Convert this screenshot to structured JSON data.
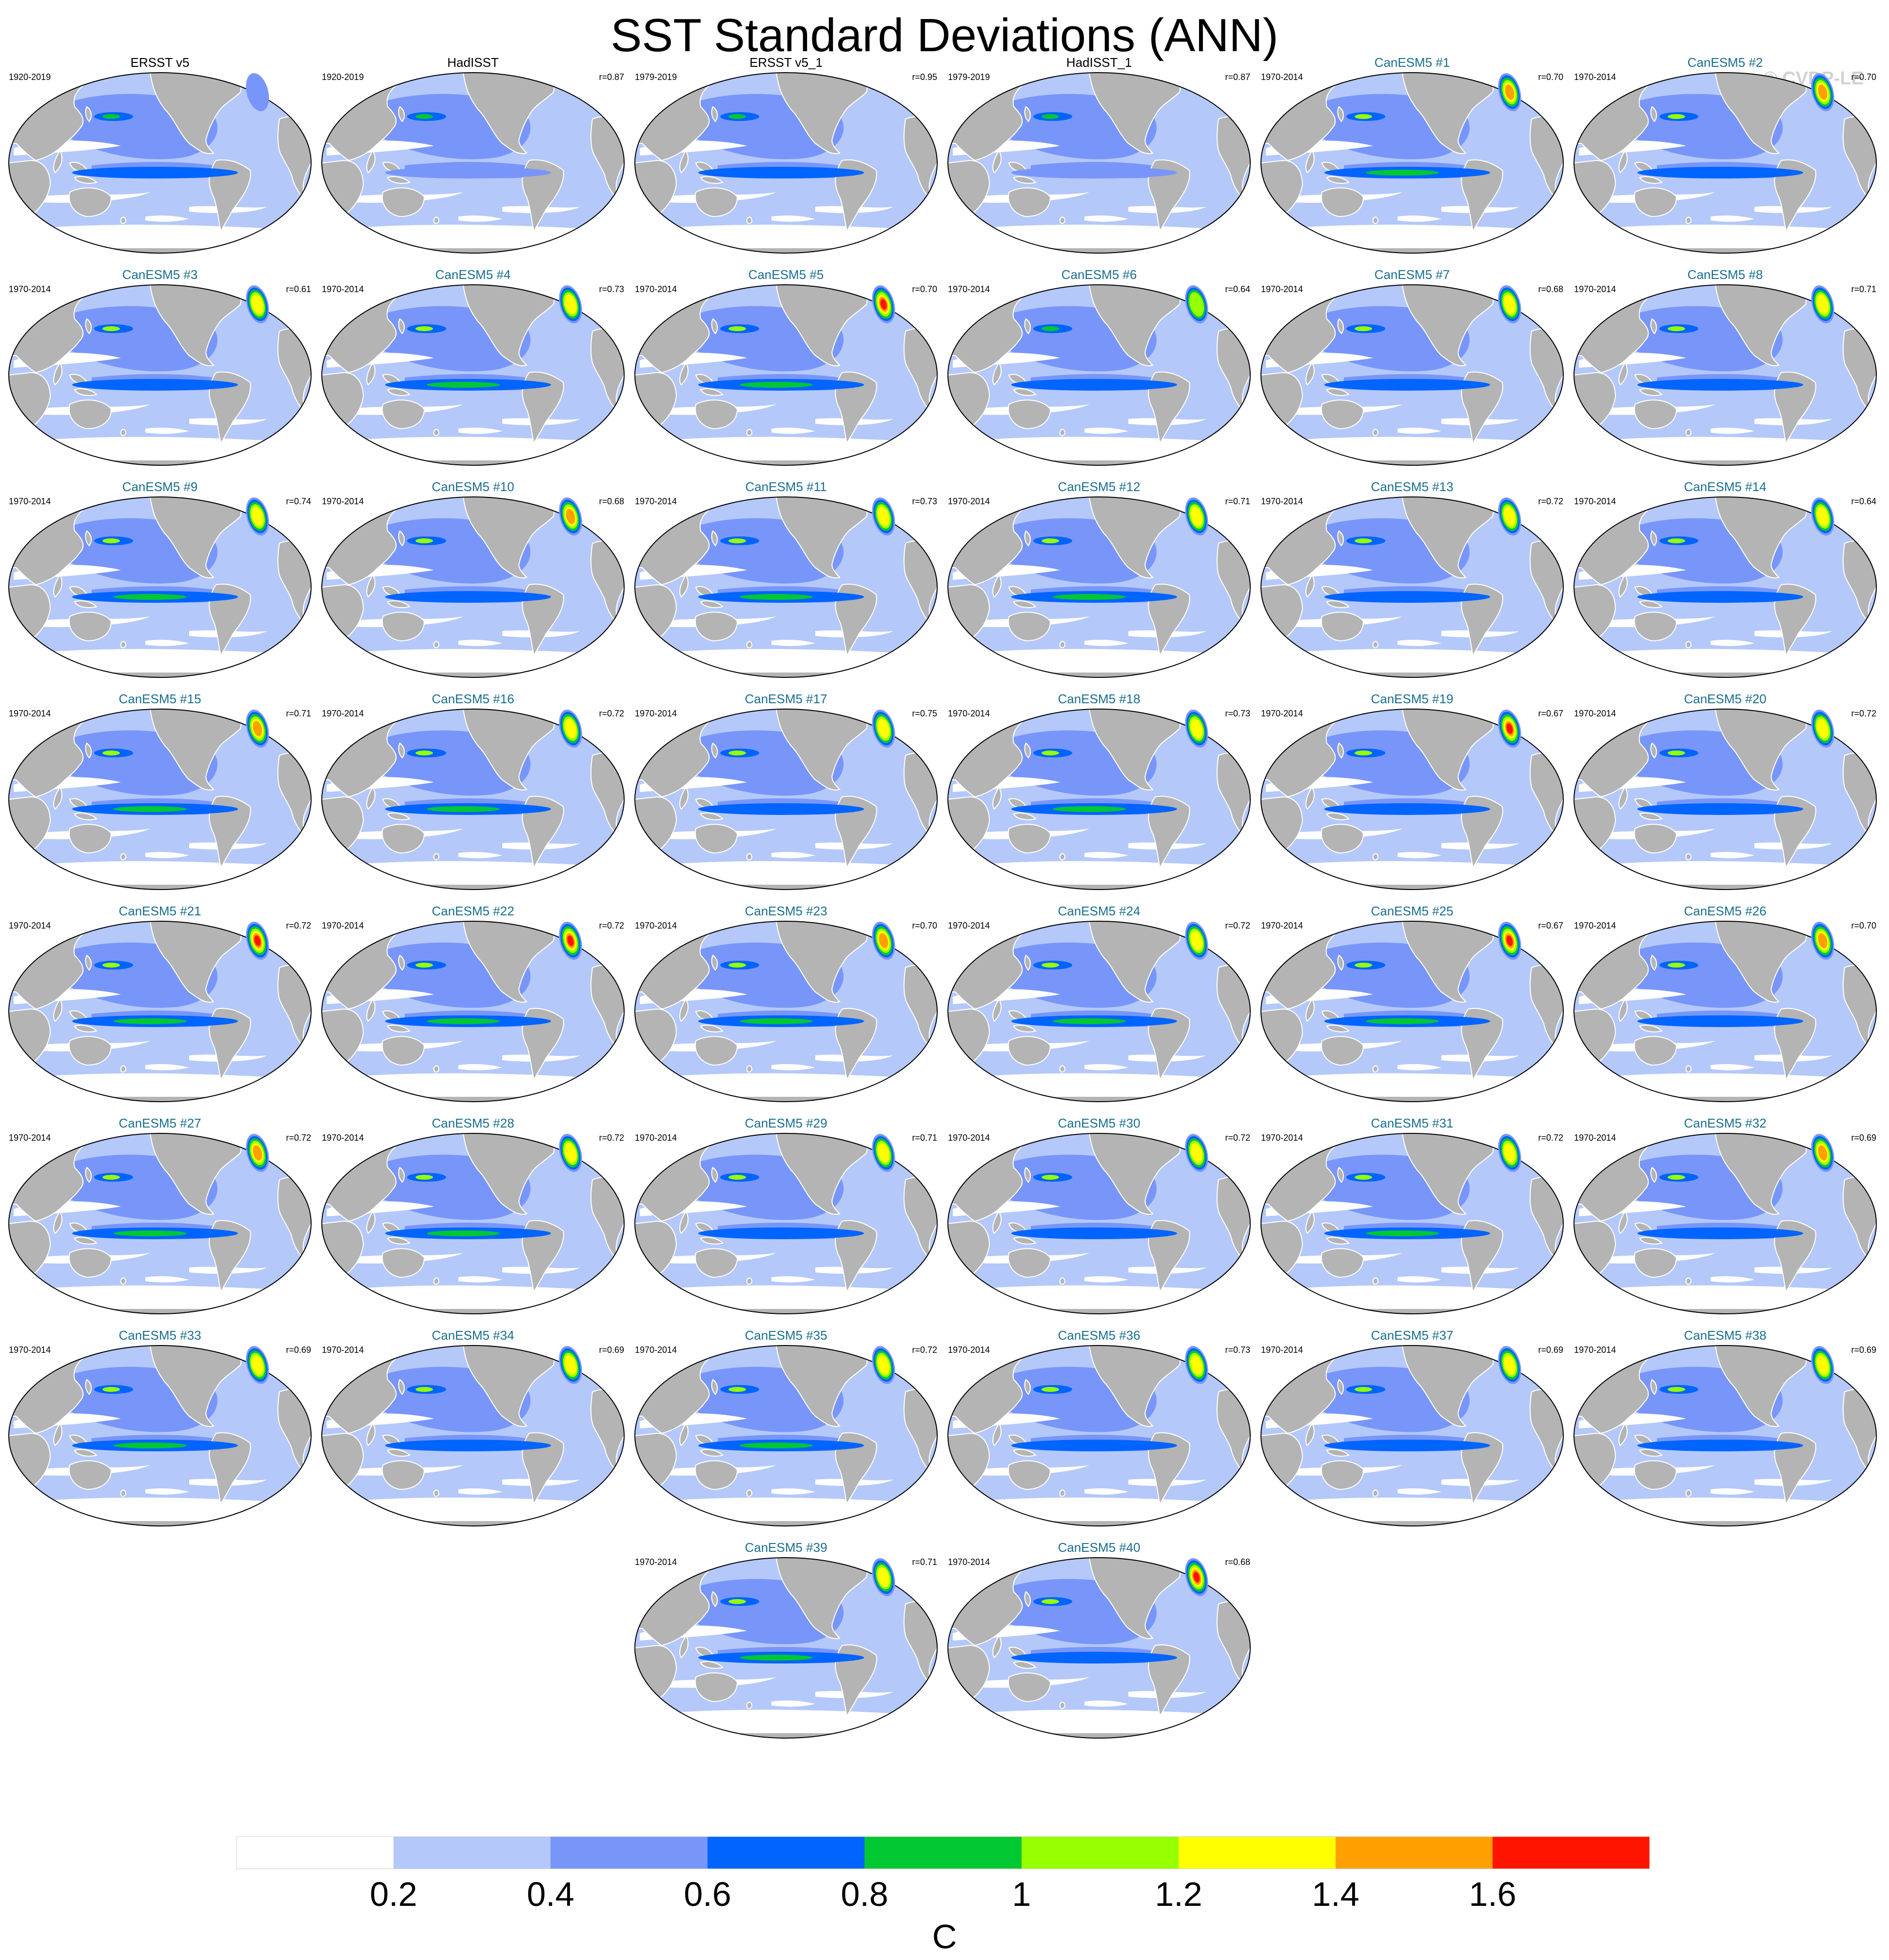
{
  "title": "SST Standard Deviations (ANN)",
  "watermark": "© CVDP-LE",
  "colors": {
    "land": "#b4b4b4",
    "coast": "#ffffff",
    "obs_title": "#000000",
    "model_title": "#1a6e8e",
    "levels": [
      "#ffffff",
      "#b4c8fa",
      "#7896fa",
      "#0064ff",
      "#00c832",
      "#96ff00",
      "#ffff00",
      "#ffa000",
      "#ff1400"
    ]
  },
  "chart_data": {
    "type": "map-panel-grid",
    "variable": "SST standard deviation",
    "season": "ANN",
    "units": "C",
    "colorbar": {
      "levels": [
        "0.2",
        "0.4",
        "0.6",
        "0.8",
        "1",
        "1.2",
        "1.4",
        "1.6"
      ],
      "units_label": "C"
    },
    "panels": [
      {
        "title": "ERSST v5",
        "period": "1920-2019",
        "r": "",
        "kind": "obs",
        "eq": 3,
        "na": 2
      },
      {
        "title": "HadISST",
        "period": "1920-2019",
        "r": "r=0.87",
        "kind": "obs",
        "eq": 2,
        "na": 1
      },
      {
        "title": "ERSST v5_1",
        "period": "1979-2019",
        "r": "r=0.95",
        "kind": "obs",
        "eq": 3,
        "na": 1
      },
      {
        "title": "HadISST_1",
        "period": "1979-2019",
        "r": "r=0.87",
        "kind": "obs",
        "eq": 2,
        "na": 1
      },
      {
        "title": "CanESM5 #1",
        "period": "1970-2014",
        "r": "r=0.70",
        "kind": "model",
        "eq": 4,
        "na": 7
      },
      {
        "title": "CanESM5 #2",
        "period": "1970-2014",
        "r": "r=0.70",
        "kind": "model",
        "eq": 3,
        "na": 7
      },
      {
        "title": "CanESM5 #3",
        "period": "1970-2014",
        "r": "r=0.61",
        "kind": "model",
        "eq": 3,
        "na": 6
      },
      {
        "title": "CanESM5 #4",
        "period": "1970-2014",
        "r": "r=0.73",
        "kind": "model",
        "eq": 4,
        "na": 6
      },
      {
        "title": "CanESM5 #5",
        "period": "1970-2014",
        "r": "r=0.70",
        "kind": "model",
        "eq": 4,
        "na": 8
      },
      {
        "title": "CanESM5 #6",
        "period": "1970-2014",
        "r": "r=0.64",
        "kind": "model",
        "eq": 3,
        "na": 5
      },
      {
        "title": "CanESM5 #7",
        "period": "1970-2014",
        "r": "r=0.68",
        "kind": "model",
        "eq": 3,
        "na": 6
      },
      {
        "title": "CanESM5 #8",
        "period": "1970-2014",
        "r": "r=0.71",
        "kind": "model",
        "eq": 3,
        "na": 6
      },
      {
        "title": "CanESM5 #9",
        "period": "1970-2014",
        "r": "r=0.74",
        "kind": "model",
        "eq": 4,
        "na": 6
      },
      {
        "title": "CanESM5 #10",
        "period": "1970-2014",
        "r": "r=0.68",
        "kind": "model",
        "eq": 3,
        "na": 7
      },
      {
        "title": "CanESM5 #11",
        "period": "1970-2014",
        "r": "r=0.73",
        "kind": "model",
        "eq": 4,
        "na": 6
      },
      {
        "title": "CanESM5 #12",
        "period": "1970-2014",
        "r": "r=0.71",
        "kind": "model",
        "eq": 4,
        "na": 6
      },
      {
        "title": "CanESM5 #13",
        "period": "1970-2014",
        "r": "r=0.72",
        "kind": "model",
        "eq": 3,
        "na": 6
      },
      {
        "title": "CanESM5 #14",
        "period": "1970-2014",
        "r": "r=0.64",
        "kind": "model",
        "eq": 3,
        "na": 6
      },
      {
        "title": "CanESM5 #15",
        "period": "1970-2014",
        "r": "r=0.71",
        "kind": "model",
        "eq": 4,
        "na": 7
      },
      {
        "title": "CanESM5 #16",
        "period": "1970-2014",
        "r": "r=0.72",
        "kind": "model",
        "eq": 4,
        "na": 6
      },
      {
        "title": "CanESM5 #17",
        "period": "1970-2014",
        "r": "r=0.75",
        "kind": "model",
        "eq": 3,
        "na": 6
      },
      {
        "title": "CanESM5 #18",
        "period": "1970-2014",
        "r": "r=0.73",
        "kind": "model",
        "eq": 4,
        "na": 6
      },
      {
        "title": "CanESM5 #19",
        "period": "1970-2014",
        "r": "r=0.67",
        "kind": "model",
        "eq": 3,
        "na": 8
      },
      {
        "title": "CanESM5 #20",
        "period": "1970-2014",
        "r": "r=0.72",
        "kind": "model",
        "eq": 3,
        "na": 6
      },
      {
        "title": "CanESM5 #21",
        "period": "1970-2014",
        "r": "r=0.72",
        "kind": "model",
        "eq": 4,
        "na": 8
      },
      {
        "title": "CanESM5 #22",
        "period": "1970-2014",
        "r": "r=0.72",
        "kind": "model",
        "eq": 4,
        "na": 8
      },
      {
        "title": "CanESM5 #23",
        "period": "1970-2014",
        "r": "r=0.70",
        "kind": "model",
        "eq": 4,
        "na": 7
      },
      {
        "title": "CanESM5 #24",
        "period": "1970-2014",
        "r": "r=0.72",
        "kind": "model",
        "eq": 4,
        "na": 6
      },
      {
        "title": "CanESM5 #25",
        "period": "1970-2014",
        "r": "r=0.67",
        "kind": "model",
        "eq": 4,
        "na": 8
      },
      {
        "title": "CanESM5 #26",
        "period": "1970-2014",
        "r": "r=0.70",
        "kind": "model",
        "eq": 3,
        "na": 7
      },
      {
        "title": "CanESM5 #27",
        "period": "1970-2014",
        "r": "r=0.72",
        "kind": "model",
        "eq": 4,
        "na": 7
      },
      {
        "title": "CanESM5 #28",
        "period": "1970-2014",
        "r": "r=0.72",
        "kind": "model",
        "eq": 4,
        "na": 6
      },
      {
        "title": "CanESM5 #29",
        "period": "1970-2014",
        "r": "r=0.71",
        "kind": "model",
        "eq": 3,
        "na": 6
      },
      {
        "title": "CanESM5 #30",
        "period": "1970-2014",
        "r": "r=0.72",
        "kind": "model",
        "eq": 3,
        "na": 6
      },
      {
        "title": "CanESM5 #31",
        "period": "1970-2014",
        "r": "r=0.72",
        "kind": "model",
        "eq": 4,
        "na": 6
      },
      {
        "title": "CanESM5 #32",
        "period": "1970-2014",
        "r": "r=0.69",
        "kind": "model",
        "eq": 3,
        "na": 7
      },
      {
        "title": "CanESM5 #33",
        "period": "1970-2014",
        "r": "r=0.69",
        "kind": "model",
        "eq": 4,
        "na": 6
      },
      {
        "title": "CanESM5 #34",
        "period": "1970-2014",
        "r": "r=0.69",
        "kind": "model",
        "eq": 3,
        "na": 6
      },
      {
        "title": "CanESM5 #35",
        "period": "1970-2014",
        "r": "r=0.72",
        "kind": "model",
        "eq": 4,
        "na": 6
      },
      {
        "title": "CanESM5 #36",
        "period": "1970-2014",
        "r": "r=0.73",
        "kind": "model",
        "eq": 3,
        "na": 6
      },
      {
        "title": "CanESM5 #37",
        "period": "1970-2014",
        "r": "r=0.69",
        "kind": "model",
        "eq": 3,
        "na": 6
      },
      {
        "title": "CanESM5 #38",
        "period": "1970-2014",
        "r": "r=0.69",
        "kind": "model",
        "eq": 3,
        "na": 6
      },
      {
        "title": "CanESM5 #39",
        "period": "1970-2014",
        "r": "r=0.71",
        "kind": "model",
        "eq": 4,
        "na": 6
      },
      {
        "title": "CanESM5 #40",
        "period": "1970-2014",
        "r": "r=0.68",
        "kind": "model",
        "eq": 3,
        "na": 8
      }
    ]
  }
}
